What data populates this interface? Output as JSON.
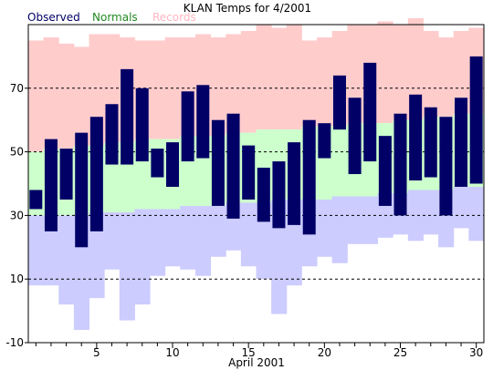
{
  "chart_data": {
    "type": "bar",
    "title": "KLAN Temps for 4/2001",
    "xlabel": "April 2001",
    "ylabel": "",
    "xlim": [
      0.5,
      30.5
    ],
    "ylim": [
      -10,
      90
    ],
    "y_ticks": [
      -10,
      10,
      30,
      50,
      70
    ],
    "x_ticks": [
      5,
      10,
      15,
      20,
      25,
      30
    ],
    "grid": "dashed lines at 10, 30, 50, 70",
    "legend": [
      {
        "name": "Observed",
        "color": "#000066"
      },
      {
        "name": "Normals",
        "color": "#228822"
      },
      {
        "name": "Records",
        "color": "#ffb6c1"
      }
    ],
    "days": [
      1,
      2,
      3,
      4,
      5,
      6,
      7,
      8,
      9,
      10,
      11,
      12,
      13,
      14,
      15,
      16,
      17,
      18,
      19,
      20,
      21,
      22,
      23,
      24,
      25,
      26,
      27,
      28,
      29,
      30
    ],
    "observed_high": [
      38,
      54,
      51,
      56,
      61,
      65,
      76,
      70,
      51,
      53,
      69,
      71,
      60,
      62,
      52,
      45,
      47,
      53,
      60,
      59,
      74,
      67,
      78,
      55,
      62,
      68,
      64,
      61,
      67,
      80
    ],
    "observed_low": [
      32,
      25,
      35,
      20,
      25,
      46,
      46,
      47,
      42,
      39,
      47,
      48,
      33,
      29,
      35,
      28,
      26,
      27,
      24,
      48,
      57,
      43,
      47,
      33,
      30,
      41,
      42,
      30,
      39,
      40
    ],
    "normal_high": [
      50,
      51,
      51,
      52,
      52,
      53,
      53,
      54,
      54,
      54,
      55,
      55,
      55,
      56,
      56,
      57,
      57,
      57,
      58,
      58,
      58,
      59,
      59,
      59,
      60,
      60,
      61,
      61,
      62,
      62
    ],
    "normal_low": [
      30,
      30,
      30,
      30,
      31,
      31,
      31,
      32,
      32,
      32,
      33,
      33,
      33,
      34,
      34,
      34,
      35,
      35,
      35,
      35,
      36,
      36,
      36,
      37,
      37,
      38,
      38,
      38,
      39,
      39
    ],
    "record_high": [
      85,
      86,
      84,
      83,
      87,
      87,
      86,
      85,
      85,
      86,
      86,
      87,
      86,
      87,
      88,
      90,
      89,
      90,
      85,
      86,
      88,
      90,
      90,
      91,
      90,
      92,
      88,
      86,
      88,
      89
    ],
    "record_low": [
      8,
      8,
      2,
      -6,
      4,
      13,
      -3,
      2,
      11,
      14,
      13,
      11,
      17,
      19,
      14,
      10,
      -1,
      8,
      14,
      17,
      15,
      21,
      21,
      23,
      24,
      22,
      24,
      20,
      26,
      22
    ],
    "colors": {
      "observed": "#000066",
      "normal_band": "#ccffcc",
      "record_high_band": "#ffcccc",
      "record_low_band": "#ccccff",
      "grid": "#000000",
      "axes": "#000000"
    }
  }
}
